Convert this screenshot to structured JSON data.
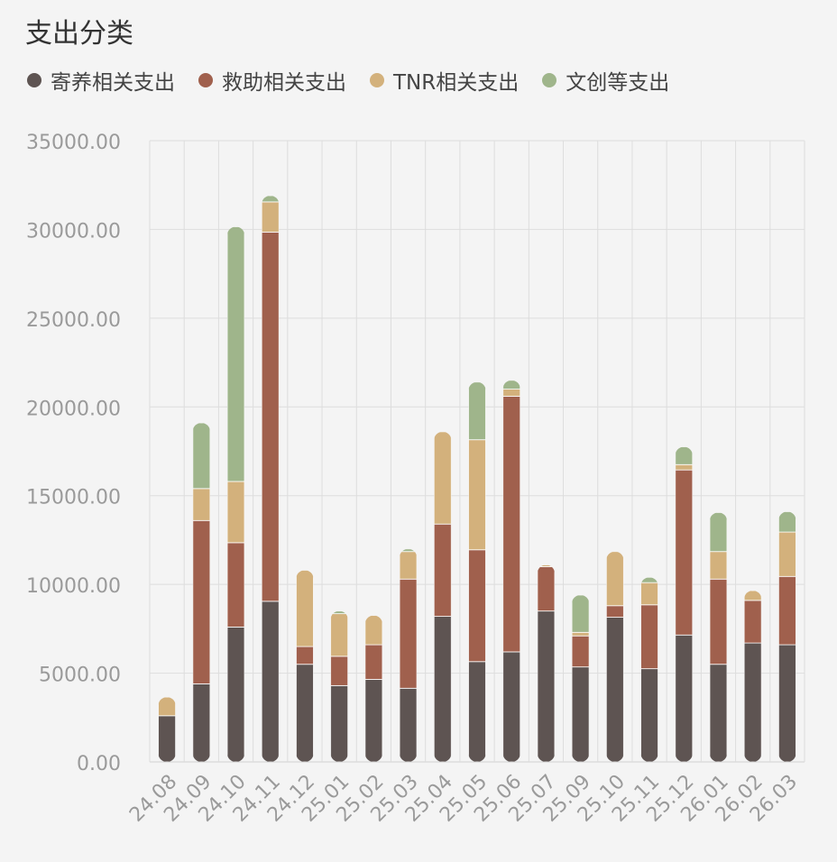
{
  "chart_data": {
    "type": "bar",
    "stacked": true,
    "title": "支出分类",
    "xlabel": "",
    "ylabel": "",
    "ylim": [
      0,
      35000
    ],
    "yticks": [
      "0.00",
      "5000.00",
      "10000.00",
      "15000.00",
      "20000.00",
      "25000.00",
      "30000.00",
      "35000.00"
    ],
    "grid": true,
    "legend_position": "top-left",
    "categories": [
      "24.08",
      "24.09",
      "24.10",
      "24.11",
      "24.12",
      "25.01",
      "25.02",
      "25.03",
      "25.04",
      "25.05",
      "25.06",
      "25.07",
      "25.09",
      "25.10",
      "25.11",
      "25.12",
      "26.01",
      "26.02",
      "26.03"
    ],
    "series": [
      {
        "name": "寄养相关支出",
        "color": "#5e5452",
        "values": [
          2600,
          4400,
          7600,
          9050,
          5500,
          4300,
          4650,
          4150,
          8200,
          5650,
          6200,
          8500,
          5350,
          8150,
          5250,
          7150,
          5500,
          6700,
          6600
        ]
      },
      {
        "name": "救助相关支出",
        "color": "#a0604d",
        "values": [
          0,
          9200,
          4750,
          20800,
          1000,
          1650,
          1950,
          6150,
          5200,
          6300,
          14400,
          2500,
          1750,
          650,
          3600,
          9300,
          4800,
          2400,
          3850
        ]
      },
      {
        "name": "TNR相关支出",
        "color": "#d3b17c",
        "values": [
          1050,
          1800,
          3450,
          1700,
          4300,
          2400,
          1650,
          1550,
          5200,
          6200,
          400,
          100,
          200,
          3050,
          1250,
          300,
          1550,
          550,
          2500
        ]
      },
      {
        "name": "文创等支出",
        "color": "#9fb58b",
        "values": [
          0,
          3700,
          14350,
          350,
          0,
          150,
          0,
          150,
          0,
          3250,
          500,
          0,
          2100,
          0,
          300,
          1000,
          2200,
          0,
          1150
        ]
      }
    ]
  }
}
